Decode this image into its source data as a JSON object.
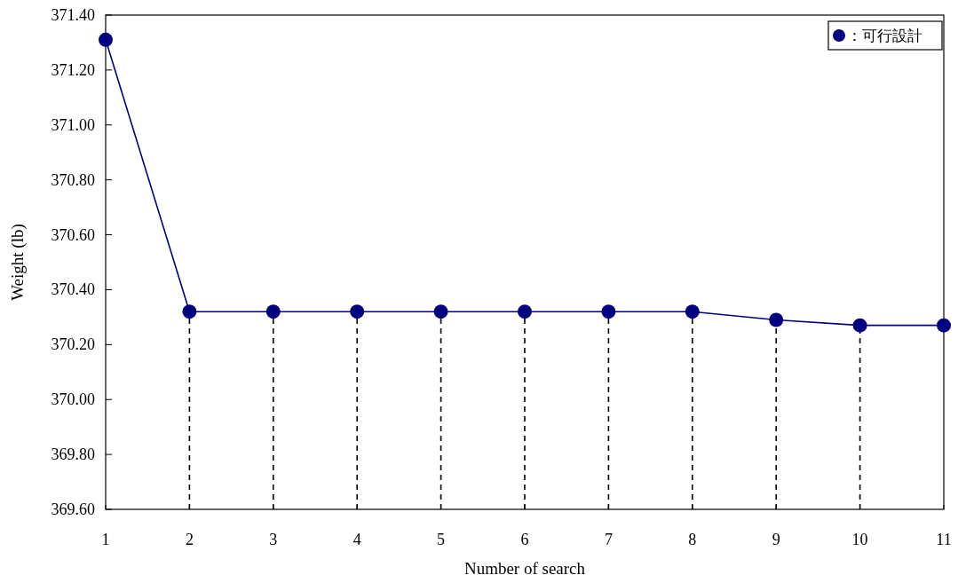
{
  "chart_data": {
    "type": "line",
    "xlabel": "Number of search",
    "ylabel": "Weight (lb)",
    "x": [
      1,
      2,
      3,
      4,
      5,
      6,
      7,
      8,
      9,
      10,
      11
    ],
    "series": [
      {
        "name": "：可行設計",
        "color": "#000080",
        "values": [
          371.31,
          370.32,
          370.32,
          370.32,
          370.32,
          370.32,
          370.32,
          370.32,
          370.29,
          370.27,
          370.27
        ]
      }
    ],
    "xlim": [
      1,
      11
    ],
    "xticks": [
      1,
      2,
      3,
      4,
      5,
      6,
      7,
      8,
      9,
      10,
      11
    ],
    "ylim": [
      369.6,
      371.4
    ],
    "yticks": [
      {
        "value": 369.6,
        "label": "369.60"
      },
      {
        "value": 369.8,
        "label": "369.80"
      },
      {
        "value": 370.0,
        "label": "370.00"
      },
      {
        "value": 370.2,
        "label": "370.20"
      },
      {
        "value": 370.4,
        "label": "370.40"
      },
      {
        "value": 370.6,
        "label": "370.60"
      },
      {
        "value": 370.8,
        "label": "370.80"
      },
      {
        "value": 371.0,
        "label": "371.00"
      },
      {
        "value": 371.2,
        "label": "371.20"
      },
      {
        "value": 371.4,
        "label": "371.40"
      }
    ],
    "ref_lines": [
      {
        "axis": "x",
        "value": 2,
        "line_style": "dashed",
        "color": "#000000"
      },
      {
        "axis": "x",
        "value": 3,
        "line_style": "dashed",
        "color": "#000000"
      },
      {
        "axis": "x",
        "value": 4,
        "line_style": "dashed",
        "color": "#000000"
      },
      {
        "axis": "x",
        "value": 5,
        "line_style": "dashed",
        "color": "#000000"
      },
      {
        "axis": "x",
        "value": 6,
        "line_style": "dashed",
        "color": "#000000"
      },
      {
        "axis": "x",
        "value": 7,
        "line_style": "dashed",
        "color": "#000000"
      },
      {
        "axis": "x",
        "value": 8,
        "line_style": "dashed",
        "color": "#000000"
      },
      {
        "axis": "x",
        "value": 9,
        "line_style": "dashed",
        "color": "#000000"
      },
      {
        "axis": "x",
        "value": 10,
        "line_style": "dashed",
        "color": "#000000"
      }
    ],
    "marker": "circle",
    "line_style": "solid",
    "grid": false,
    "legend": "top right"
  }
}
